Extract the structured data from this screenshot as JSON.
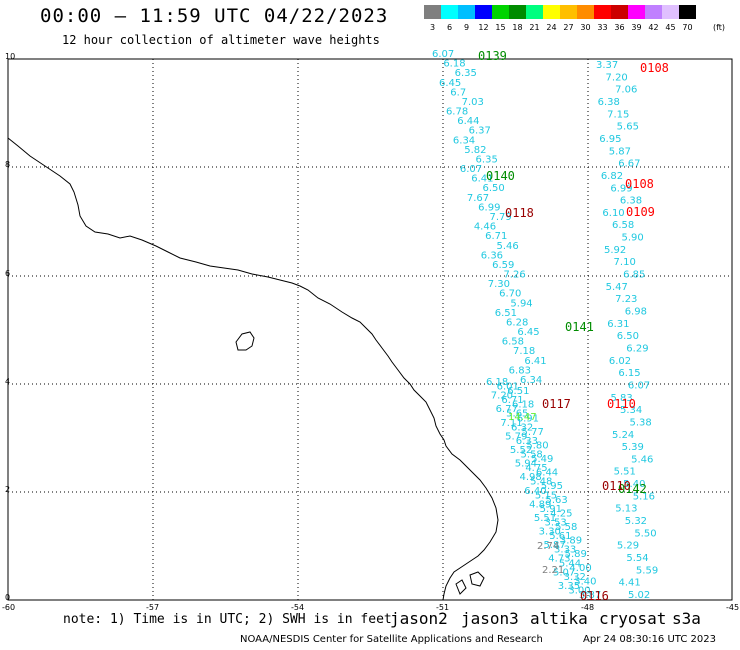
{
  "header": {
    "title": "00:00 – 11:59 UTC 04/22/2023",
    "subtitle": "12 hour collection of altimeter wave heights"
  },
  "scale": {
    "labels": [
      "3",
      "6",
      "9",
      "12",
      "15",
      "18",
      "21",
      "24",
      "27",
      "30",
      "33",
      "36",
      "39",
      "42",
      "45",
      "70"
    ],
    "unit": "(ft)",
    "colors": [
      "#7f7f7f",
      "#00ffff",
      "#00bfff",
      "#0000ff",
      "#00d400",
      "#008c00",
      "#00ff7f",
      "#ffff00",
      "#ffbf00",
      "#ff8c00",
      "#ff0000",
      "#cc0000",
      "#ff00ff",
      "#c080ff",
      "#e0c0ff",
      "#000000"
    ]
  },
  "axes": {
    "x_ticks": [
      "-60",
      "-57",
      "-54",
      "-51",
      "-48",
      "-45"
    ],
    "y_ticks": [
      "0",
      "2",
      "4",
      "6",
      "8",
      "10"
    ]
  },
  "footer": {
    "note": "note: 1) Time is in UTC; 2) SWH is in feet",
    "satellites": [
      {
        "name": "jason2",
        "color": "#0000ff"
      },
      {
        "name": "jason3",
        "color": "#00a000"
      },
      {
        "name": "altika",
        "color": "#ff9900"
      },
      {
        "name": "cryosat",
        "color": "#ff0000"
      },
      {
        "name": "s3a",
        "color": "#990000"
      }
    ],
    "credit": "NOAA/NESDIS Center for Satellite Applications and Research",
    "timestamp": "Apr 24 08:30:16 UTC 2023"
  },
  "track_labels": [
    {
      "text": "0139",
      "color": "#008c00"
    },
    {
      "text": "0140",
      "color": "#008c00"
    },
    {
      "text": "0141",
      "color": "#008c00"
    },
    {
      "text": "0142",
      "color": "#008c00"
    },
    {
      "text": "0118",
      "color": "#990000"
    },
    {
      "text": "0117",
      "color": "#990000"
    },
    {
      "text": "0116",
      "color": "#990000"
    },
    {
      "text": "0108",
      "color": "#ff0000"
    },
    {
      "text": "0108",
      "color": "#ff0000"
    },
    {
      "text": "0109",
      "color": "#ff0000"
    },
    {
      "text": "0110",
      "color": "#ff0000"
    },
    {
      "text": "0110",
      "color": "#990000"
    }
  ],
  "obs_cyan": [
    "6.07",
    "6.18",
    "6.35",
    "6.45",
    "6.7",
    "7.03",
    "6.78",
    "6.44",
    "6.37",
    "6.34",
    "5.82",
    "6.35",
    "6.07",
    "6.41",
    "6.50",
    "7.67",
    "6.99",
    "7.79",
    "4.46",
    "6.71",
    "5.46",
    "6.36",
    "6.59",
    "7.26",
    "7.30",
    "6.70",
    "5.94",
    "6.51",
    "6.28",
    "6.45",
    "6.58",
    "7.18",
    "6.41",
    "6.83",
    "6.34",
    "6.18",
    "6.01",
    "6.51",
    "7.20",
    "6.71",
    "6.18",
    "6.77",
    "5.65",
    "6.91",
    "7.11",
    "6.32",
    "5.77",
    "5.79",
    "6.33",
    "5.80",
    "5.52",
    "5.58",
    "5.49",
    "5.94",
    "4.75",
    "6.44",
    "4.98",
    "5.48",
    "5.95",
    "6.40",
    "5.15",
    "5.63",
    "4.89",
    "5.91",
    "4.25",
    "5.51",
    "3.53",
    "5.58",
    "3.30",
    "5.61",
    "3.89",
    "5.87",
    "3.33",
    "5.89",
    "4.73",
    "5.44",
    "4.00",
    "5.07",
    "3.32",
    "3.40",
    "3.35",
    "3.00",
    "3.87",
    "3.37",
    "7.20",
    "7.06",
    "6.38",
    "7.15",
    "5.65",
    "6.95",
    "5.87",
    "6.67",
    "6.82",
    "6.99",
    "6.38",
    "6.10",
    "6.58",
    "5.90",
    "5.92",
    "7.10",
    "6.85",
    "5.47",
    "7.23",
    "6.98",
    "6.31",
    "6.50",
    "6.29",
    "6.02",
    "6.15",
    "6.07",
    "5.83",
    "5.34",
    "5.38",
    "5.24",
    "5.39",
    "5.46",
    "5.51",
    "5.40",
    "5.16",
    "5.13",
    "5.32",
    "5.50",
    "5.29",
    "5.54",
    "5.59",
    "4.41",
    "5.02",
    "4.87"
  ],
  "obs_gray": [
    "2.74",
    "2.21"
  ],
  "obs_green": [
    "14.47"
  ]
}
